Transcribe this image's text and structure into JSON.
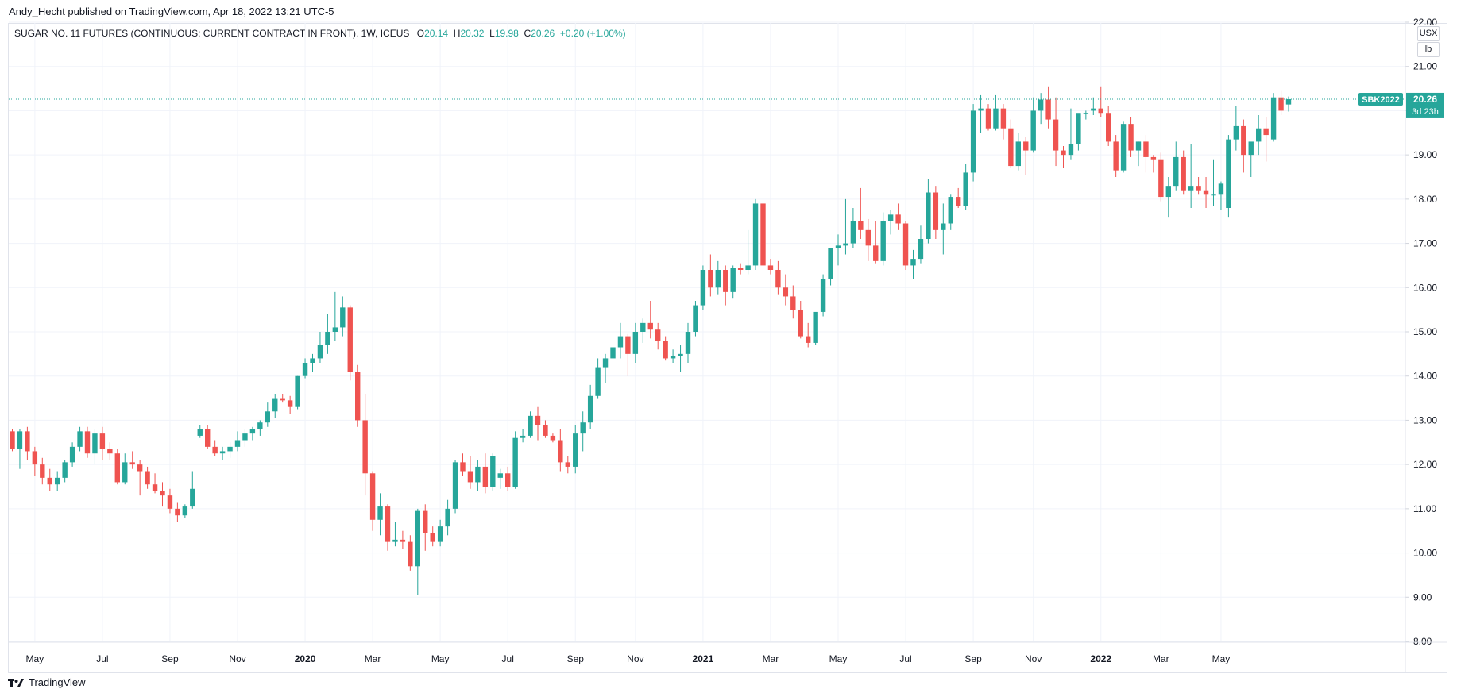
{
  "publisher_line": "Andy_Hecht published on TradingView.com, Apr 18, 2022 13:21 UTC-5",
  "legend": {
    "symbol": "SUGAR NO. 11 FUTURES (CONTINUOUS: CURRENT CONTRACT IN FRONT), 1W, ICEUS",
    "o_label": "O",
    "o_value": "20.14",
    "h_label": "H",
    "h_value": "20.32",
    "l_label": "L",
    "l_value": "19.98",
    "c_label": "C",
    "c_value": "20.26",
    "change": "+0.20 (+1.00%)"
  },
  "unit_buttons": [
    "USX",
    "lb"
  ],
  "price_tag": {
    "symbol": "SBK2022",
    "price": "20.26",
    "countdown": "3d 23h"
  },
  "footer": {
    "brand": "TradingView"
  },
  "colors": {
    "up": "#26a69a",
    "down": "#ef5350",
    "grid": "#f0f3fa",
    "axis_text": "#131722"
  },
  "chart_data": {
    "type": "candlestick",
    "title": "SUGAR NO. 11 FUTURES (CONTINUOUS: CURRENT CONTRACT IN FRONT), 1W, ICEUS",
    "ylim": [
      8.0,
      22.0
    ],
    "y_ticks": [
      "8.00",
      "9.00",
      "10.00",
      "11.00",
      "12.00",
      "13.00",
      "14.00",
      "15.00",
      "16.00",
      "17.00",
      "18.00",
      "19.00",
      "20.00",
      "21.00",
      "22.00"
    ],
    "x_ticks": [
      {
        "label": "May",
        "week": 3
      },
      {
        "label": "Jul",
        "week": 12
      },
      {
        "label": "Sep",
        "week": 21
      },
      {
        "label": "Nov",
        "week": 30
      },
      {
        "label": "2020",
        "week": 39
      },
      {
        "label": "Mar",
        "week": 48
      },
      {
        "label": "May",
        "week": 57
      },
      {
        "label": "Jul",
        "week": 66
      },
      {
        "label": "Sep",
        "week": 75
      },
      {
        "label": "Nov",
        "week": 83
      },
      {
        "label": "2021",
        "week": 92
      },
      {
        "label": "Mar",
        "week": 101
      },
      {
        "label": "May",
        "week": 110
      },
      {
        "label": "Jul",
        "week": 119
      },
      {
        "label": "Sep",
        "week": 128
      },
      {
        "label": "Nov",
        "week": 136
      },
      {
        "label": "2022",
        "week": 145
      },
      {
        "label": "Mar",
        "week": 153
      },
      {
        "label": "May",
        "week": 161
      }
    ],
    "last_price": 20.26,
    "candles": [
      [
        12.75,
        12.8,
        12.3,
        12.35
      ],
      [
        12.35,
        12.8,
        11.9,
        12.75
      ],
      [
        12.75,
        12.85,
        12.1,
        12.3
      ],
      [
        12.3,
        12.4,
        11.75,
        12.0
      ],
      [
        12.0,
        12.15,
        11.55,
        11.7
      ],
      [
        11.7,
        11.9,
        11.4,
        11.55
      ],
      [
        11.55,
        11.85,
        11.4,
        11.7
      ],
      [
        11.7,
        12.1,
        11.6,
        12.05
      ],
      [
        12.05,
        12.5,
        11.95,
        12.4
      ],
      [
        12.4,
        12.85,
        12.3,
        12.75
      ],
      [
        12.75,
        12.85,
        12.15,
        12.25
      ],
      [
        12.25,
        12.8,
        12.0,
        12.7
      ],
      [
        12.7,
        12.85,
        12.1,
        12.35
      ],
      [
        12.35,
        12.5,
        12.1,
        12.25
      ],
      [
        12.25,
        12.35,
        11.55,
        11.6
      ],
      [
        11.6,
        12.25,
        11.55,
        12.05
      ],
      [
        12.05,
        12.3,
        11.9,
        12.0
      ],
      [
        12.0,
        12.1,
        11.3,
        11.85
      ],
      [
        11.85,
        11.95,
        11.45,
        11.55
      ],
      [
        11.55,
        11.8,
        11.35,
        11.4
      ],
      [
        11.4,
        11.6,
        11.05,
        11.3
      ],
      [
        11.3,
        11.45,
        10.9,
        11.0
      ],
      [
        11.0,
        11.15,
        10.7,
        10.85
      ],
      [
        10.85,
        11.1,
        10.8,
        11.05
      ],
      [
        11.05,
        11.85,
        11.0,
        11.45
      ],
      [
        12.65,
        12.9,
        12.6,
        12.8
      ],
      [
        12.8,
        12.9,
        12.35,
        12.4
      ],
      [
        12.4,
        12.55,
        12.2,
        12.25
      ],
      [
        12.25,
        12.4,
        12.1,
        12.3
      ],
      [
        12.3,
        12.5,
        12.15,
        12.4
      ],
      [
        12.4,
        12.75,
        12.3,
        12.55
      ],
      [
        12.55,
        12.8,
        12.4,
        12.7
      ],
      [
        12.7,
        12.85,
        12.55,
        12.8
      ],
      [
        12.8,
        13.0,
        12.65,
        12.95
      ],
      [
        12.95,
        13.4,
        12.85,
        13.2
      ],
      [
        13.2,
        13.6,
        13.05,
        13.5
      ],
      [
        13.5,
        13.6,
        13.4,
        13.45
      ],
      [
        13.45,
        13.55,
        13.15,
        13.3
      ],
      [
        13.3,
        14.0,
        13.25,
        14.0
      ],
      [
        14.0,
        14.4,
        13.95,
        14.3
      ],
      [
        14.3,
        14.5,
        14.1,
        14.4
      ],
      [
        14.4,
        15.0,
        14.3,
        14.7
      ],
      [
        14.7,
        15.4,
        14.5,
        15.0
      ],
      [
        15.0,
        15.9,
        14.8,
        15.1
      ],
      [
        15.1,
        15.8,
        14.9,
        15.55
      ],
      [
        15.55,
        15.6,
        13.9,
        14.1
      ],
      [
        14.1,
        14.25,
        12.85,
        13.0
      ],
      [
        13.0,
        13.6,
        11.3,
        11.8
      ],
      [
        11.8,
        11.85,
        10.5,
        10.75
      ],
      [
        10.75,
        11.35,
        10.4,
        11.05
      ],
      [
        11.05,
        11.1,
        10.05,
        10.25
      ],
      [
        10.25,
        10.7,
        10.15,
        10.3
      ],
      [
        10.3,
        10.5,
        10.1,
        10.25
      ],
      [
        10.25,
        10.4,
        9.6,
        9.7
      ],
      [
        9.7,
        11.0,
        9.05,
        10.95
      ],
      [
        10.95,
        11.1,
        10.05,
        10.45
      ],
      [
        10.45,
        10.6,
        10.15,
        10.25
      ],
      [
        10.25,
        10.75,
        10.15,
        10.6
      ],
      [
        10.6,
        11.2,
        10.4,
        11.0
      ],
      [
        11.0,
        12.1,
        10.9,
        12.05
      ],
      [
        12.05,
        12.25,
        11.75,
        11.85
      ],
      [
        11.85,
        12.2,
        11.45,
        11.6
      ],
      [
        11.6,
        12.1,
        11.4,
        11.95
      ],
      [
        11.95,
        12.25,
        11.35,
        11.5
      ],
      [
        11.5,
        12.25,
        11.4,
        12.2
      ],
      [
        11.7,
        11.9,
        11.45,
        11.8
      ],
      [
        11.8,
        11.95,
        11.4,
        11.5
      ],
      [
        11.5,
        12.75,
        11.45,
        12.6
      ],
      [
        12.6,
        12.8,
        12.5,
        12.65
      ],
      [
        12.65,
        13.2,
        12.6,
        13.1
      ],
      [
        13.1,
        13.3,
        12.55,
        12.9
      ],
      [
        12.9,
        13.0,
        12.6,
        12.65
      ],
      [
        12.65,
        12.7,
        12.5,
        12.55
      ],
      [
        12.55,
        12.8,
        11.85,
        12.05
      ],
      [
        12.05,
        12.2,
        11.8,
        11.95
      ],
      [
        11.95,
        12.9,
        11.8,
        12.7
      ],
      [
        12.7,
        13.2,
        12.3,
        12.95
      ],
      [
        12.95,
        13.8,
        12.8,
        13.55
      ],
      [
        13.55,
        14.4,
        13.5,
        14.2
      ],
      [
        14.2,
        14.5,
        13.85,
        14.4
      ],
      [
        14.4,
        15.0,
        14.3,
        14.65
      ],
      [
        14.65,
        15.2,
        14.4,
        14.9
      ],
      [
        14.9,
        14.95,
        14.0,
        14.5
      ],
      [
        14.5,
        15.2,
        14.3,
        15.0
      ],
      [
        15.0,
        15.3,
        14.75,
        15.2
      ],
      [
        15.2,
        15.7,
        14.85,
        15.05
      ],
      [
        15.05,
        15.2,
        14.6,
        14.8
      ],
      [
        14.8,
        14.9,
        14.35,
        14.4
      ],
      [
        14.4,
        14.6,
        14.3,
        14.45
      ],
      [
        14.45,
        14.7,
        14.1,
        14.5
      ],
      [
        14.5,
        15.2,
        14.3,
        15.0
      ],
      [
        15.0,
        15.7,
        14.9,
        15.6
      ],
      [
        15.6,
        16.5,
        15.5,
        16.4
      ],
      [
        16.4,
        16.75,
        15.8,
        16.0
      ],
      [
        16.0,
        16.6,
        15.85,
        16.4
      ],
      [
        16.4,
        16.5,
        15.6,
        15.9
      ],
      [
        15.9,
        16.5,
        15.75,
        16.45
      ],
      [
        16.45,
        16.55,
        16.3,
        16.4
      ],
      [
        16.4,
        17.3,
        16.3,
        16.5
      ],
      [
        16.5,
        18.0,
        16.4,
        17.9
      ],
      [
        17.9,
        18.95,
        16.45,
        16.5
      ],
      [
        16.5,
        16.65,
        16.3,
        16.4
      ],
      [
        16.4,
        16.6,
        15.85,
        16.0
      ],
      [
        16.0,
        16.3,
        15.6,
        15.8
      ],
      [
        15.8,
        16.05,
        15.3,
        15.5
      ],
      [
        15.5,
        15.7,
        14.85,
        14.9
      ],
      [
        14.9,
        15.2,
        14.65,
        14.75
      ],
      [
        14.75,
        15.4,
        14.7,
        15.45
      ],
      [
        15.45,
        16.3,
        15.35,
        16.2
      ],
      [
        16.2,
        16.9,
        16.05,
        16.9
      ],
      [
        16.9,
        17.2,
        16.5,
        16.95
      ],
      [
        16.95,
        18.0,
        16.75,
        17.0
      ],
      [
        17.0,
        17.8,
        16.9,
        17.5
      ],
      [
        17.5,
        18.25,
        17.1,
        17.3
      ],
      [
        17.3,
        17.55,
        16.6,
        16.95
      ],
      [
        16.95,
        17.5,
        16.55,
        16.6
      ],
      [
        16.6,
        17.7,
        16.5,
        17.5
      ],
      [
        17.5,
        17.75,
        17.2,
        17.65
      ],
      [
        17.65,
        17.9,
        17.3,
        17.45
      ],
      [
        17.45,
        17.5,
        16.4,
        16.5
      ],
      [
        16.5,
        16.85,
        16.2,
        16.65
      ],
      [
        16.65,
        17.4,
        16.55,
        17.1
      ],
      [
        17.1,
        18.45,
        17.0,
        18.15
      ],
      [
        18.15,
        18.3,
        17.1,
        17.3
      ],
      [
        17.3,
        17.9,
        16.75,
        17.45
      ],
      [
        17.45,
        18.1,
        17.3,
        18.05
      ],
      [
        18.05,
        18.25,
        17.8,
        17.85
      ],
      [
        17.85,
        18.8,
        17.75,
        18.6
      ],
      [
        18.6,
        20.15,
        18.4,
        20.0
      ],
      [
        20.0,
        20.35,
        19.5,
        20.05
      ],
      [
        20.05,
        20.15,
        19.55,
        19.6
      ],
      [
        19.6,
        20.35,
        19.55,
        20.05
      ],
      [
        20.05,
        20.15,
        19.35,
        19.6
      ],
      [
        19.6,
        19.8,
        18.7,
        18.75
      ],
      [
        18.75,
        19.5,
        18.65,
        19.3
      ],
      [
        19.3,
        19.4,
        18.55,
        19.1
      ],
      [
        19.1,
        20.3,
        19.05,
        20.0
      ],
      [
        20.0,
        20.4,
        19.7,
        20.25
      ],
      [
        20.25,
        20.55,
        19.6,
        19.8
      ],
      [
        19.8,
        20.3,
        18.75,
        19.1
      ],
      [
        19.1,
        19.2,
        18.7,
        19.0
      ],
      [
        19.0,
        20.05,
        18.9,
        19.25
      ],
      [
        19.25,
        19.9,
        19.1,
        19.95
      ],
      [
        19.95,
        20.0,
        19.8,
        19.95
      ],
      [
        20.0,
        20.3,
        19.9,
        20.05
      ],
      [
        20.05,
        20.55,
        19.85,
        19.95
      ],
      [
        19.95,
        20.1,
        19.2,
        19.3
      ],
      [
        19.3,
        19.45,
        18.5,
        18.65
      ],
      [
        18.65,
        19.75,
        18.6,
        19.7
      ],
      [
        19.7,
        19.85,
        18.95,
        19.1
      ],
      [
        19.1,
        19.3,
        18.75,
        19.3
      ],
      [
        19.3,
        19.45,
        18.6,
        18.95
      ],
      [
        18.95,
        19.0,
        18.6,
        18.9
      ],
      [
        18.9,
        19.05,
        17.95,
        18.05
      ],
      [
        18.05,
        18.5,
        17.6,
        18.3
      ],
      [
        18.3,
        19.3,
        18.2,
        18.95
      ],
      [
        18.95,
        19.1,
        18.1,
        18.2
      ],
      [
        18.2,
        19.25,
        17.8,
        18.3
      ],
      [
        18.3,
        18.5,
        18.1,
        18.2
      ],
      [
        18.2,
        18.5,
        17.8,
        18.1
      ],
      [
        18.1,
        18.9,
        17.85,
        18.1
      ],
      [
        18.1,
        18.4,
        17.75,
        18.35
      ],
      [
        17.8,
        19.45,
        17.6,
        19.35
      ],
      [
        19.35,
        20.1,
        19.1,
        19.65
      ],
      [
        19.65,
        19.8,
        18.6,
        19.0
      ],
      [
        19.0,
        19.25,
        18.5,
        19.3
      ],
      [
        19.3,
        19.9,
        19.0,
        19.6
      ],
      [
        19.6,
        19.85,
        18.85,
        19.45
      ],
      [
        19.35,
        20.4,
        19.3,
        20.3
      ],
      [
        20.3,
        20.45,
        19.9,
        20.0
      ],
      [
        20.14,
        20.32,
        19.98,
        20.26
      ]
    ]
  }
}
